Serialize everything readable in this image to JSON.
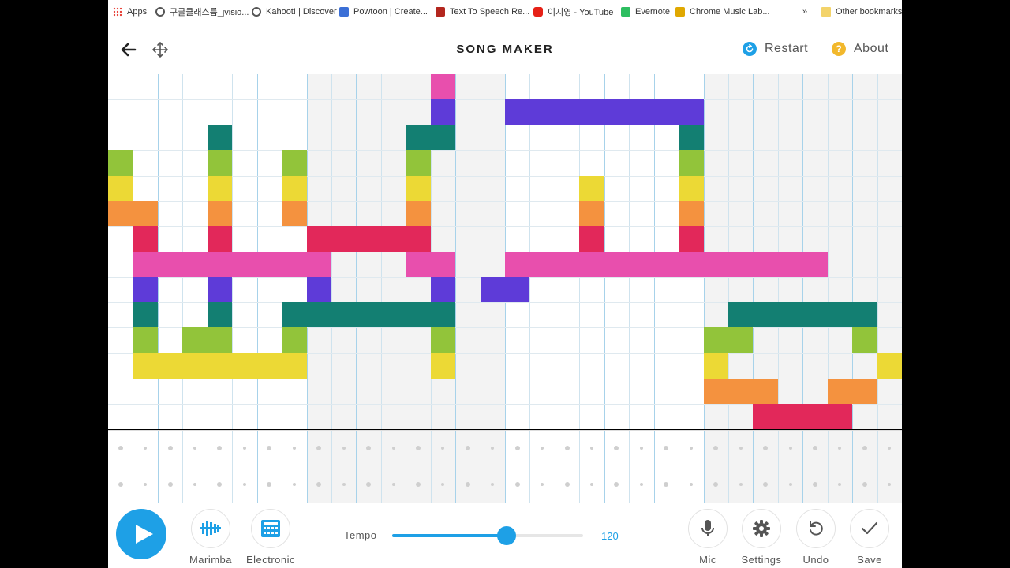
{
  "bookmarks": [
    {
      "label": "Apps",
      "icon": "apps-grid-icon"
    },
    {
      "label": "구글클래스룸_jvisio...",
      "icon": "globe-icon"
    },
    {
      "label": "Kahoot! | Discover",
      "icon": "globe-icon"
    },
    {
      "label": "Powtoon | Create...",
      "icon": "powtoon-icon"
    },
    {
      "label": "Text To Speech Re...",
      "icon": "speaker-icon"
    },
    {
      "label": "이지영 - YouTube",
      "icon": "youtube-icon"
    },
    {
      "label": "Evernote",
      "icon": "evernote-icon"
    },
    {
      "label": "Chrome Music Lab...",
      "icon": "music-lab-icon"
    },
    {
      "label": "Other bookmarks",
      "icon": "folder-icon"
    }
  ],
  "bookmarks_overflow": "»",
  "header": {
    "title": "SONG MAKER",
    "restart_label": "Restart",
    "about_label": "About",
    "about_icon_text": "?"
  },
  "grid": {
    "columns": 32,
    "rows": 14,
    "colors": {
      "pink": "#e84fad",
      "purple": "#5e3bd8",
      "teal": "#137f72",
      "green": "#92c43a",
      "yellow": "#ecd935",
      "orange": "#f4923f",
      "red": "#e2285a"
    },
    "notes": [
      {
        "row": 0,
        "col": 13,
        "color": "pink"
      },
      {
        "row": 1,
        "col": 13,
        "color": "purple"
      },
      {
        "row": 1,
        "col": 16,
        "len": 8,
        "color": "purple"
      },
      {
        "row": 2,
        "col": 4,
        "color": "teal"
      },
      {
        "row": 2,
        "col": 12,
        "len": 2,
        "color": "teal"
      },
      {
        "row": 2,
        "col": 23,
        "color": "teal"
      },
      {
        "row": 3,
        "col": 0,
        "color": "green"
      },
      {
        "row": 3,
        "col": 4,
        "color": "green"
      },
      {
        "row": 3,
        "col": 7,
        "color": "green"
      },
      {
        "row": 3,
        "col": 12,
        "color": "green"
      },
      {
        "row": 3,
        "col": 23,
        "color": "green"
      },
      {
        "row": 4,
        "col": 0,
        "color": "yellow"
      },
      {
        "row": 4,
        "col": 4,
        "color": "yellow"
      },
      {
        "row": 4,
        "col": 7,
        "color": "yellow"
      },
      {
        "row": 4,
        "col": 12,
        "color": "yellow"
      },
      {
        "row": 4,
        "col": 19,
        "color": "yellow"
      },
      {
        "row": 4,
        "col": 23,
        "color": "yellow"
      },
      {
        "row": 5,
        "col": 0,
        "len": 2,
        "color": "orange"
      },
      {
        "row": 5,
        "col": 4,
        "color": "orange"
      },
      {
        "row": 5,
        "col": 7,
        "color": "orange"
      },
      {
        "row": 5,
        "col": 12,
        "color": "orange"
      },
      {
        "row": 5,
        "col": 19,
        "color": "orange"
      },
      {
        "row": 5,
        "col": 23,
        "color": "orange"
      },
      {
        "row": 6,
        "col": 1,
        "color": "red"
      },
      {
        "row": 6,
        "col": 4,
        "color": "red"
      },
      {
        "row": 6,
        "col": 8,
        "len": 5,
        "color": "red"
      },
      {
        "row": 6,
        "col": 19,
        "color": "red"
      },
      {
        "row": 6,
        "col": 23,
        "color": "red"
      },
      {
        "row": 7,
        "col": 1,
        "len": 8,
        "color": "pink"
      },
      {
        "row": 7,
        "col": 12,
        "len": 2,
        "color": "pink"
      },
      {
        "row": 7,
        "col": 16,
        "len": 13,
        "color": "pink"
      },
      {
        "row": 8,
        "col": 1,
        "color": "purple"
      },
      {
        "row": 8,
        "col": 4,
        "color": "purple"
      },
      {
        "row": 8,
        "col": 8,
        "color": "purple"
      },
      {
        "row": 8,
        "col": 13,
        "color": "purple"
      },
      {
        "row": 8,
        "col": 15,
        "len": 2,
        "color": "purple"
      },
      {
        "row": 9,
        "col": 1,
        "color": "teal"
      },
      {
        "row": 9,
        "col": 4,
        "color": "teal"
      },
      {
        "row": 9,
        "col": 7,
        "len": 7,
        "color": "teal"
      },
      {
        "row": 9,
        "col": 25,
        "len": 6,
        "color": "teal"
      },
      {
        "row": 10,
        "col": 1,
        "color": "green"
      },
      {
        "row": 10,
        "col": 3,
        "len": 2,
        "color": "green"
      },
      {
        "row": 10,
        "col": 7,
        "color": "green"
      },
      {
        "row": 10,
        "col": 13,
        "color": "green"
      },
      {
        "row": 10,
        "col": 24,
        "len": 2,
        "color": "green"
      },
      {
        "row": 10,
        "col": 30,
        "color": "green"
      },
      {
        "row": 11,
        "col": 1,
        "len": 7,
        "color": "yellow"
      },
      {
        "row": 11,
        "col": 13,
        "color": "yellow"
      },
      {
        "row": 11,
        "col": 24,
        "color": "yellow"
      },
      {
        "row": 11,
        "col": 31,
        "color": "yellow"
      },
      {
        "row": 12,
        "col": 24,
        "len": 3,
        "color": "orange"
      },
      {
        "row": 12,
        "col": 29,
        "len": 2,
        "color": "orange"
      },
      {
        "row": 13,
        "col": 26,
        "len": 4,
        "color": "red"
      }
    ]
  },
  "controls": {
    "marimba_label": "Marimba",
    "electronic_label": "Electronic",
    "tempo_label": "Tempo",
    "tempo_value": "120",
    "tempo_fraction": 0.6,
    "mic_label": "Mic",
    "settings_label": "Settings",
    "undo_label": "Undo",
    "save_label": "Save"
  }
}
